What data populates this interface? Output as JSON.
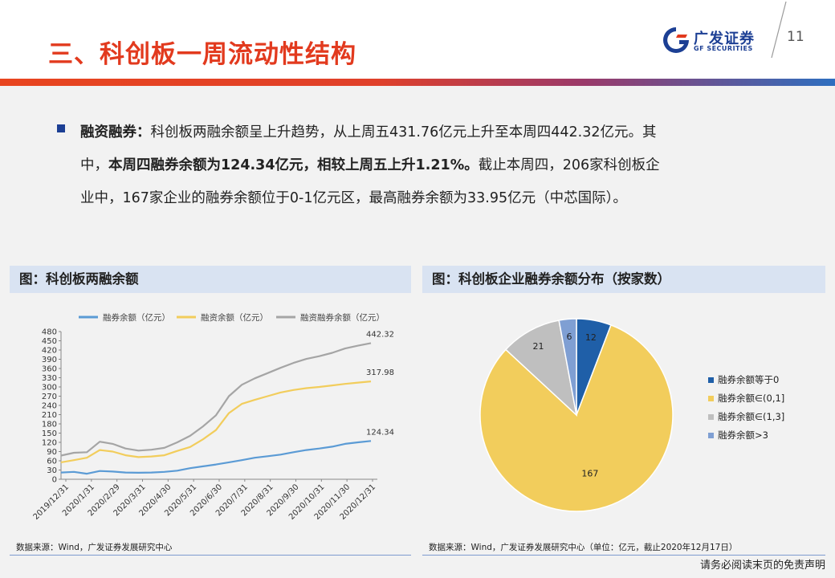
{
  "header": {
    "title": "三、科创板一周流动性结构",
    "logo_cn": "广发证券",
    "logo_en": "GF SECURITIES",
    "page_number": "11"
  },
  "paragraph": {
    "line1_bold": "融资融券：",
    "line1_rest": "科创板两融余额呈上升趋势，从上周五431.76亿元上升至本周四442.32亿元。其",
    "line2_pre": "中，",
    "line2_bold": "本周四融券余额为124.34亿元，相较上周五上升1.21%。",
    "line2_rest": "截止本周四，206家科创板企",
    "line3": "业中，167家企业的融券余额位于0-1亿元区，最高融券余额为33.95亿元（中芯国际）。"
  },
  "left_panel": {
    "title": "图：科创板两融余额",
    "source": "数据来源：Wind，广发证券发展研究中心"
  },
  "right_panel": {
    "title": "图：科创板企业融券余额分布（按家数）",
    "source": "数据来源：Wind，广发证券发展研究中心（单位：亿元，截止2020年12月17日）"
  },
  "disclaimer": "请务必阅读末页的免责声明",
  "colors": {
    "title_red": "#e23a1e",
    "brand_blue": "#1c3f94",
    "series_blue": "#5b9bd5",
    "series_yellow": "#f2cd5c",
    "series_gray": "#a5a5a5",
    "pie_navy": "#1f5fa8",
    "pie_yellow": "#f2cd5c",
    "pie_gray": "#bfbfbf",
    "pie_lightblue": "#7f9fd3"
  },
  "chart_data": [
    {
      "type": "line",
      "title": "图：科创板两融余额",
      "ylim": [
        0,
        480
      ],
      "yticks": [
        0,
        30,
        60,
        90,
        120,
        150,
        180,
        210,
        240,
        270,
        300,
        330,
        360,
        390,
        420,
        450,
        480
      ],
      "x_tick_labels": [
        "2019/12/31",
        "2020/1/31",
        "2020/2/29",
        "2020/3/31",
        "2020/4/30",
        "2020/5/31",
        "2020/6/30",
        "2020/7/31",
        "2020/8/31",
        "2020/9/30",
        "2020/10/31",
        "2020/11/30",
        "2020/12/31"
      ],
      "x": [
        "2019/12/31",
        "2020/1/15",
        "2020/1/31",
        "2020/2/14",
        "2020/2/29",
        "2020/3/15",
        "2020/3/31",
        "2020/4/15",
        "2020/4/30",
        "2020/5/15",
        "2020/5/31",
        "2020/6/15",
        "2020/6/30",
        "2020/7/10",
        "2020/7/20",
        "2020/7/31",
        "2020/8/15",
        "2020/8/31",
        "2020/9/15",
        "2020/9/30",
        "2020/10/15",
        "2020/10/31",
        "2020/11/15",
        "2020/11/30",
        "2020/12/17"
      ],
      "series": [
        {
          "name": "融券余额（亿元）",
          "color": "#5b9bd5",
          "values": [
            22,
            24,
            18,
            27,
            25,
            22,
            21,
            22,
            24,
            28,
            36,
            42,
            48,
            55,
            62,
            70,
            75,
            80,
            88,
            95,
            100,
            106,
            115,
            120,
            124.34
          ]
        },
        {
          "name": "融资余额（亿元）",
          "color": "#f2cd5c",
          "values": [
            55,
            62,
            70,
            95,
            90,
            78,
            72,
            74,
            78,
            92,
            105,
            130,
            160,
            215,
            245,
            258,
            270,
            282,
            290,
            296,
            300,
            305,
            310,
            314,
            317.98
          ]
        },
        {
          "name": "融资融券余额（亿元）",
          "color": "#a5a5a5",
          "values": [
            77,
            86,
            88,
            122,
            115,
            100,
            93,
            96,
            102,
            120,
            141,
            172,
            208,
            270,
            307,
            328,
            345,
            362,
            378,
            391,
            400,
            411,
            425,
            434,
            442.32
          ]
        }
      ],
      "end_labels": [
        "442.32",
        "317.98",
        "124.34"
      ]
    },
    {
      "type": "pie",
      "title": "图：科创板企业融券余额分布（按家数）",
      "slices": [
        {
          "label": "融券余额等于0",
          "value": 12,
          "color": "#1f5fa8"
        },
        {
          "label": "融券余额∈(0,1]",
          "value": 167,
          "color": "#f2cd5c"
        },
        {
          "label": "融券余额∈(1,3]",
          "value": 21,
          "color": "#bfbfbf"
        },
        {
          "label": "融券余额>3",
          "value": 6,
          "color": "#7f9fd3"
        }
      ],
      "legend_position": "right"
    }
  ]
}
